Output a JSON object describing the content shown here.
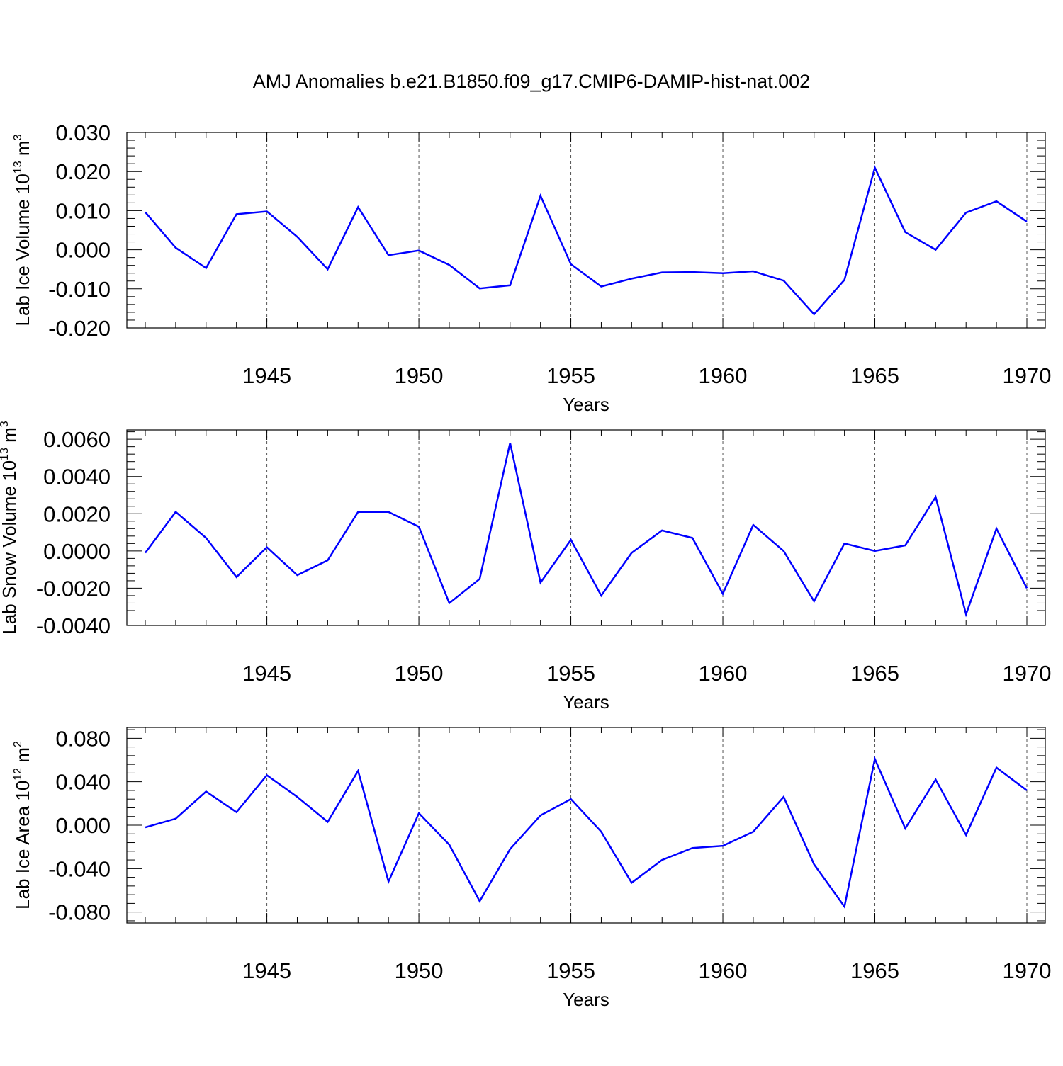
{
  "title": "AMJ Anomalies b.e21.B1850.f09_g17.CMIP6-DAMIP-hist-nat.002",
  "line_color": "#0000ff",
  "chart_data": [
    {
      "type": "line",
      "xlabel": "Years",
      "ylabel_prefix": "Lab Ice Volume 10",
      "ylabel_exp": "13",
      "ylabel_unit": " m",
      "ylabel_unit_exp": "3",
      "xlim": [
        1941,
        1970
      ],
      "ylim": [
        -0.02,
        0.03
      ],
      "yticks": [
        -0.02,
        -0.01,
        0.0,
        0.01,
        0.02,
        0.03
      ],
      "ytick_labels": [
        "-0.020",
        "-0.010",
        "0.000",
        "0.010",
        "0.020",
        "0.030"
      ],
      "xticks": [
        1945,
        1950,
        1955,
        1960,
        1965,
        1970
      ],
      "xtick_labels": [
        "1945",
        "1950",
        "1955",
        "1960",
        "1965",
        "1970"
      ],
      "x": [
        1941,
        1942,
        1943,
        1944,
        1945,
        1946,
        1947,
        1948,
        1949,
        1950,
        1951,
        1952,
        1953,
        1954,
        1955,
        1956,
        1957,
        1958,
        1959,
        1960,
        1961,
        1962,
        1963,
        1964,
        1965,
        1966,
        1967,
        1968,
        1969,
        1970
      ],
      "values": [
        0.0096,
        0.0005,
        -0.0047,
        0.0091,
        0.0098,
        0.0033,
        -0.005,
        0.0109,
        -0.0014,
        -0.0002,
        -0.0039,
        -0.0099,
        -0.0091,
        0.0138,
        -0.0037,
        -0.0094,
        -0.0074,
        -0.0058,
        -0.0057,
        -0.006,
        -0.0055,
        -0.0079,
        -0.0165,
        -0.0077,
        0.021,
        0.0045,
        0.0,
        0.0095,
        0.0124,
        0.0072
      ]
    },
    {
      "type": "line",
      "xlabel": "Years",
      "ylabel_prefix": "Lab Snow Volume 10",
      "ylabel_exp": "13",
      "ylabel_unit": " m",
      "ylabel_unit_exp": "3",
      "xlim": [
        1941,
        1970
      ],
      "ylim": [
        -0.004,
        0.0065
      ],
      "yticks": [
        -0.004,
        -0.002,
        0.0,
        0.002,
        0.004,
        0.006
      ],
      "ytick_labels": [
        "-0.0040",
        "-0.0020",
        "0.0000",
        "0.0020",
        "0.0040",
        "0.0060"
      ],
      "xticks": [
        1945,
        1950,
        1955,
        1960,
        1965,
        1970
      ],
      "xtick_labels": [
        "1945",
        "1950",
        "1955",
        "1960",
        "1965",
        "1970"
      ],
      "x": [
        1941,
        1942,
        1943,
        1944,
        1945,
        1946,
        1947,
        1948,
        1949,
        1950,
        1951,
        1952,
        1953,
        1954,
        1955,
        1956,
        1957,
        1958,
        1959,
        1960,
        1961,
        1962,
        1963,
        1964,
        1965,
        1966,
        1967,
        1968,
        1969,
        1970
      ],
      "values": [
        -0.0001,
        0.0021,
        0.0007,
        -0.0014,
        0.0002,
        -0.0013,
        -0.0005,
        0.0021,
        0.0021,
        0.0013,
        -0.0028,
        -0.0015,
        0.0058,
        -0.0017,
        0.0006,
        -0.0024,
        -0.0001,
        0.0011,
        0.0007,
        -0.0023,
        0.0014,
        0.0,
        -0.0027,
        0.0004,
        0.0,
        0.0003,
        0.0029,
        -0.0034,
        0.0012,
        -0.002
      ]
    },
    {
      "type": "line",
      "xlabel": "Years",
      "ylabel_prefix": "Lab Ice Area 10",
      "ylabel_exp": "12",
      "ylabel_unit": " m",
      "ylabel_unit_exp": "2",
      "xlim": [
        1941,
        1970
      ],
      "ylim": [
        -0.09,
        0.09
      ],
      "yticks": [
        -0.08,
        -0.04,
        0.0,
        0.04,
        0.08
      ],
      "ytick_labels": [
        "-0.080",
        "-0.040",
        "0.000",
        "0.040",
        "0.080"
      ],
      "xticks": [
        1945,
        1950,
        1955,
        1960,
        1965,
        1970
      ],
      "xtick_labels": [
        "1945",
        "1950",
        "1955",
        "1960",
        "1965",
        "1970"
      ],
      "x": [
        1941,
        1942,
        1943,
        1944,
        1945,
        1946,
        1947,
        1948,
        1949,
        1950,
        1951,
        1952,
        1953,
        1954,
        1955,
        1956,
        1957,
        1958,
        1959,
        1960,
        1961,
        1962,
        1963,
        1964,
        1965,
        1966,
        1967,
        1968,
        1969,
        1970
      ],
      "values": [
        -0.002,
        0.006,
        0.031,
        0.012,
        0.046,
        0.026,
        0.003,
        0.05,
        -0.052,
        0.011,
        -0.018,
        -0.07,
        -0.022,
        0.009,
        0.024,
        -0.006,
        -0.053,
        -0.032,
        -0.021,
        -0.019,
        -0.006,
        0.026,
        -0.036,
        -0.075,
        0.061,
        -0.003,
        0.042,
        -0.009,
        0.053,
        0.032
      ]
    }
  ]
}
